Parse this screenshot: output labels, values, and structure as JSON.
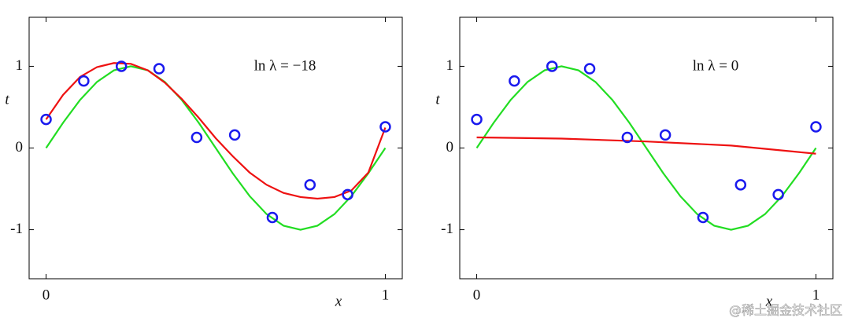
{
  "chart_data": [
    {
      "type": "scatter",
      "annotation": "ln λ = −18",
      "xlabel": "x",
      "ylabel": "t",
      "xlim": [
        -0.05,
        1.05
      ],
      "ylim": [
        -1.6,
        1.6
      ],
      "xticks": [
        0,
        1
      ],
      "yticks": [
        -1,
        0,
        1
      ],
      "series": [
        {
          "marker": "line",
          "color": "#22dd22",
          "x": [
            0,
            0.05,
            0.1,
            0.15,
            0.2,
            0.25,
            0.3,
            0.35,
            0.4,
            0.45,
            0.5,
            0.55,
            0.6,
            0.65,
            0.7,
            0.75,
            0.8,
            0.85,
            0.9,
            0.95,
            1
          ],
          "values": [
            0,
            0.309,
            0.588,
            0.809,
            0.951,
            1,
            0.951,
            0.809,
            0.588,
            0.309,
            0,
            -0.309,
            -0.588,
            -0.809,
            -0.951,
            -1,
            -0.951,
            -0.809,
            -0.588,
            -0.309,
            0
          ]
        },
        {
          "marker": "line",
          "color": "#ee1111",
          "x": [
            0,
            0.05,
            0.1,
            0.15,
            0.2,
            0.25,
            0.3,
            0.35,
            0.4,
            0.45,
            0.5,
            0.55,
            0.6,
            0.65,
            0.7,
            0.75,
            0.8,
            0.85,
            0.9,
            0.95,
            1
          ],
          "values": [
            0.35,
            0.65,
            0.87,
            0.99,
            1.04,
            1.03,
            0.95,
            0.8,
            0.6,
            0.37,
            0.12,
            -0.1,
            -0.3,
            -0.45,
            -0.55,
            -0.6,
            -0.62,
            -0.6,
            -0.52,
            -0.3,
            0.25
          ]
        },
        {
          "marker": "circle",
          "color": "#1a1aee",
          "x": [
            0,
            0.111,
            0.222,
            0.333,
            0.444,
            0.556,
            0.667,
            0.778,
            0.889,
            1
          ],
          "values": [
            0.35,
            0.82,
            1.0,
            0.97,
            0.13,
            0.16,
            -0.85,
            -0.45,
            -0.57,
            0.26
          ]
        }
      ]
    },
    {
      "type": "scatter",
      "annotation": "ln λ = 0",
      "xlabel": "x",
      "ylabel": "t",
      "xlim": [
        -0.05,
        1.05
      ],
      "ylim": [
        -1.6,
        1.6
      ],
      "xticks": [
        0,
        1
      ],
      "yticks": [
        -1,
        0,
        1
      ],
      "series": [
        {
          "marker": "line",
          "color": "#22dd22",
          "x": [
            0,
            0.05,
            0.1,
            0.15,
            0.2,
            0.25,
            0.3,
            0.35,
            0.4,
            0.45,
            0.5,
            0.55,
            0.6,
            0.65,
            0.7,
            0.75,
            0.8,
            0.85,
            0.9,
            0.95,
            1
          ],
          "values": [
            0,
            0.309,
            0.588,
            0.809,
            0.951,
            1,
            0.951,
            0.809,
            0.588,
            0.309,
            0,
            -0.309,
            -0.588,
            -0.809,
            -0.951,
            -1,
            -0.951,
            -0.809,
            -0.588,
            -0.309,
            0
          ]
        },
        {
          "marker": "line",
          "color": "#ee1111",
          "x": [
            0,
            0.25,
            0.5,
            0.75,
            1
          ],
          "values": [
            0.13,
            0.115,
            0.08,
            0.03,
            -0.07
          ]
        },
        {
          "marker": "circle",
          "color": "#1a1aee",
          "x": [
            0,
            0.111,
            0.222,
            0.333,
            0.444,
            0.556,
            0.667,
            0.778,
            0.889,
            1
          ],
          "values": [
            0.35,
            0.82,
            1.0,
            0.97,
            0.13,
            0.16,
            -0.85,
            -0.45,
            -0.57,
            0.26
          ]
        }
      ]
    }
  ],
  "watermark": "@稀土掘金技术社区"
}
